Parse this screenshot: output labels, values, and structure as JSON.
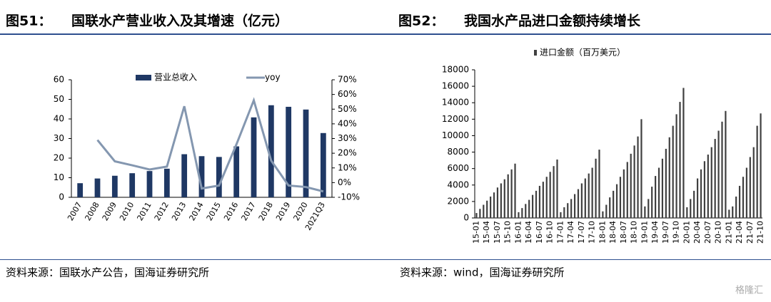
{
  "header": {
    "left_label": "图51：",
    "left_title": "国联水产营业收入及其增速（亿元）",
    "right_label": "图52：",
    "right_title": "我国水产品进口金额持续增长"
  },
  "chart_data": [
    {
      "type": "bar_line",
      "categories": [
        "2007",
        "2008",
        "2009",
        "2010",
        "2011",
        "2012",
        "2013",
        "2014",
        "2015",
        "2016",
        "2017",
        "2018",
        "2019",
        "2020",
        "2021Q3"
      ],
      "series": [
        {
          "name": "营业总收入",
          "color": "#1f3864",
          "values": [
            7.2,
            9.6,
            11,
            12.3,
            13.4,
            14.6,
            22,
            21,
            20.6,
            26,
            40.8,
            47,
            46.2,
            44.8,
            32.8
          ]
        },
        {
          "name": "yoy",
          "color": "#8497b0",
          "axis": "y2",
          "values": [
            null,
            29,
            14.5,
            11.8,
            8.9,
            10.9,
            52,
            -4,
            -2,
            26,
            56,
            15,
            -2,
            -3,
            -6
          ]
        }
      ],
      "ylim": [
        0,
        60
      ],
      "yticks": [
        0,
        10,
        20,
        30,
        40,
        50,
        60
      ],
      "y2lim": [
        -10,
        70
      ],
      "y2ticks": [
        {
          "value": -10,
          "label": "-10%"
        },
        {
          "value": 0,
          "label": "0%"
        },
        {
          "value": 10,
          "label": "10%"
        },
        {
          "value": 20,
          "label": "20%"
        },
        {
          "value": 30,
          "label": "30%"
        },
        {
          "value": 40,
          "label": "40%"
        },
        {
          "value": 50,
          "label": "50%"
        },
        {
          "value": 60,
          "label": "60%"
        },
        {
          "value": 70,
          "label": "70%"
        }
      ]
    },
    {
      "type": "bar",
      "categories": [
        "15-01",
        null,
        null,
        "15-04",
        null,
        null,
        "15-07",
        null,
        null,
        "15-10",
        null,
        null,
        "16-01",
        null,
        null,
        "16-04",
        null,
        null,
        "16-07",
        null,
        null,
        "16-10",
        null,
        null,
        "17-01",
        null,
        null,
        "17-04",
        null,
        null,
        "17-07",
        null,
        null,
        "17-10",
        null,
        null,
        "18-01",
        null,
        null,
        "18-04",
        null,
        null,
        "18-07",
        null,
        null,
        "18-10",
        null,
        null,
        "19-01",
        null,
        null,
        "19-04",
        null,
        null,
        "19-07",
        null,
        null,
        "19-10",
        null,
        null,
        "20-01",
        null,
        null,
        "20-04",
        null,
        null,
        "20-07",
        null,
        null,
        "20-10",
        null,
        null,
        "21-01",
        null,
        null,
        "21-04",
        null,
        null,
        "21-07",
        null,
        null,
        "21-10"
      ],
      "series": [
        {
          "name": "进口金额（百万美元）",
          "color": "#404040",
          "values": [
            600,
            1100,
            1600,
            2100,
            2600,
            3100,
            3700,
            4200,
            4700,
            5300,
            5900,
            6600,
            700,
            1200,
            1700,
            2200,
            2800,
            3300,
            3900,
            4400,
            5000,
            5600,
            6300,
            7100,
            700,
            1300,
            1800,
            2300,
            2900,
            3500,
            4200,
            4800,
            5400,
            6100,
            7200,
            8300,
            800,
            1600,
            2500,
            3300,
            4100,
            5000,
            5900,
            6800,
            7800,
            8800,
            9900,
            12000,
            1400,
            2300,
            3800,
            5100,
            6100,
            7200,
            8400,
            9800,
            11200,
            12600,
            14100,
            15800,
            1300,
            2300,
            3300,
            4800,
            5900,
            6900,
            7700,
            8600,
            9600,
            10600,
            11700,
            13000,
            1000,
            1400,
            2600,
            3900,
            5000,
            6100,
            7400,
            8600,
            11200,
            12700
          ]
        }
      ],
      "ylim": [
        0,
        18000
      ],
      "yticks": [
        0,
        2000,
        4000,
        6000,
        8000,
        10000,
        12000,
        14000,
        16000,
        18000
      ]
    }
  ],
  "footer": {
    "left": "资料来源：国联水产公告，国海证券研究所",
    "right": "资料来源：wind，国海证券研究所",
    "watermark": "格隆汇"
  }
}
